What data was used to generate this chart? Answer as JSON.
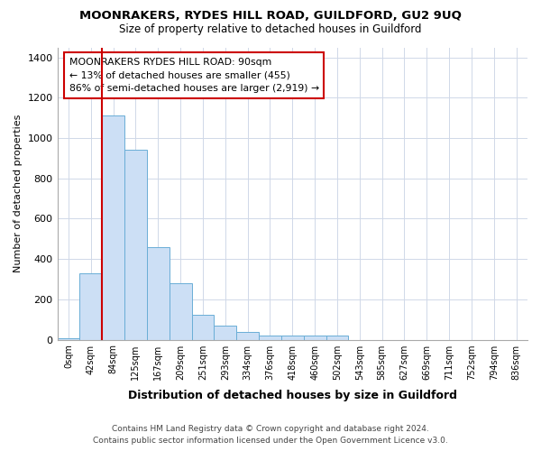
{
  "title": "MOONRAKERS, RYDES HILL ROAD, GUILDFORD, GU2 9UQ",
  "subtitle": "Size of property relative to detached houses in Guildford",
  "xlabel": "Distribution of detached houses by size in Guildford",
  "ylabel": "Number of detached properties",
  "footnote1": "Contains HM Land Registry data © Crown copyright and database right 2024.",
  "footnote2": "Contains public sector information licensed under the Open Government Licence v3.0.",
  "annotation_title": "MOONRAKERS RYDES HILL ROAD: 90sqm",
  "annotation_line2": "← 13% of detached houses are smaller (455)",
  "annotation_line3": "86% of semi-detached houses are larger (2,919) →",
  "bar_color": "#ccdff5",
  "bar_edge_color": "#6aaed6",
  "vline_color": "#cc0000",
  "annotation_box_edge": "#cc0000",
  "background_color": "#ffffff",
  "plot_bg_color": "#ffffff",
  "grid_color": "#d0d8e8",
  "categories": [
    "0sqm",
    "42sqm",
    "84sqm",
    "125sqm",
    "167sqm",
    "209sqm",
    "251sqm",
    "293sqm",
    "334sqm",
    "376sqm",
    "418sqm",
    "460sqm",
    "502sqm",
    "543sqm",
    "585sqm",
    "627sqm",
    "669sqm",
    "711sqm",
    "752sqm",
    "794sqm",
    "836sqm"
  ],
  "values": [
    8,
    330,
    1110,
    940,
    460,
    280,
    125,
    70,
    40,
    20,
    20,
    20,
    20,
    0,
    0,
    0,
    0,
    0,
    0,
    0,
    0
  ],
  "vline_x": 1.5,
  "ylim": [
    0,
    1450
  ],
  "yticks": [
    0,
    200,
    400,
    600,
    800,
    1000,
    1200,
    1400
  ]
}
